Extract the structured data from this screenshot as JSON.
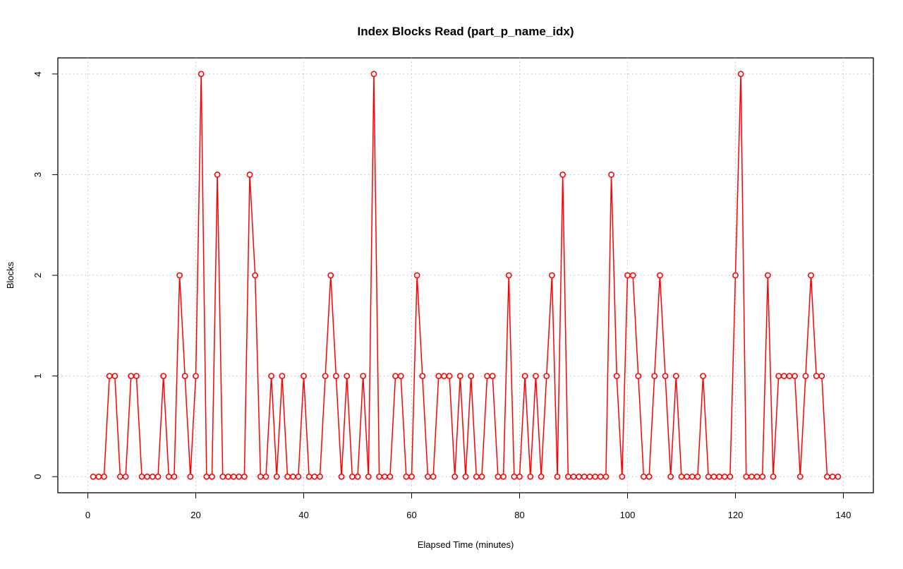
{
  "chart_data": {
    "type": "line",
    "title": "Index Blocks Read (part_p_name_idx)",
    "x_label": "Elapsed Time (minutes)",
    "y_label": "Blocks",
    "x": [
      1,
      2,
      3,
      4,
      5,
      6,
      7,
      8,
      9,
      10,
      11,
      12,
      13,
      14,
      15,
      16,
      17,
      18,
      19,
      20,
      21,
      22,
      23,
      24,
      25,
      26,
      27,
      28,
      29,
      30,
      31,
      32,
      33,
      34,
      35,
      36,
      37,
      38,
      39,
      40,
      41,
      42,
      43,
      44,
      45,
      46,
      47,
      48,
      49,
      50,
      51,
      52,
      53,
      54,
      55,
      56,
      57,
      58,
      59,
      60,
      61,
      62,
      63,
      64,
      65,
      66,
      67,
      68,
      69,
      70,
      71,
      72,
      73,
      74,
      75,
      76,
      77,
      78,
      79,
      80,
      81,
      82,
      83,
      84,
      85,
      86,
      87,
      88,
      89,
      90,
      91,
      92,
      93,
      94,
      95,
      96,
      97,
      98,
      99,
      100,
      101,
      102,
      103,
      104,
      105,
      106,
      107,
      108,
      109,
      110,
      111,
      112,
      113,
      114,
      115,
      116,
      117,
      118,
      119,
      120,
      121,
      122,
      123,
      124,
      125,
      126,
      127,
      128,
      129,
      130,
      131,
      132,
      133,
      134,
      135,
      136,
      137,
      138,
      139
    ],
    "series": [
      {
        "name": "Blocks",
        "color": "#ff0000",
        "values": [
          0,
          0,
          0,
          1,
          1,
          0,
          0,
          1,
          1,
          0,
          0,
          0,
          0,
          1,
          0,
          0,
          2,
          1,
          0,
          1,
          4,
          0,
          0,
          3,
          0,
          0,
          0,
          0,
          0,
          3,
          2,
          0,
          0,
          1,
          0,
          1,
          0,
          0,
          0,
          1,
          0,
          0,
          0,
          1,
          2,
          1,
          0,
          1,
          0,
          0,
          1,
          0,
          4,
          0,
          0,
          0,
          1,
          1,
          0,
          0,
          2,
          1,
          0,
          0,
          1,
          1,
          1,
          0,
          1,
          0,
          1,
          0,
          0,
          1,
          1,
          0,
          0,
          2,
          0,
          0,
          1,
          0,
          1,
          0,
          1,
          2,
          0,
          3,
          0,
          0,
          0,
          0,
          0,
          0,
          0,
          0,
          3,
          1,
          0,
          2,
          2,
          1,
          0,
          0,
          1,
          2,
          1,
          0,
          1,
          0,
          0,
          0,
          0,
          1,
          0,
          0,
          0,
          0,
          0,
          2,
          4,
          0,
          0,
          0,
          0,
          2,
          0,
          1,
          1,
          1,
          1,
          0,
          1,
          2,
          1,
          1,
          0,
          0,
          0
        ]
      }
    ],
    "xlim": [
      -5.56,
      145.56
    ],
    "ylim": [
      -0.16,
      4.16
    ],
    "xticks": [
      0,
      20,
      40,
      60,
      80,
      100,
      120,
      140
    ],
    "yticks": [
      0,
      1,
      2,
      3,
      4
    ],
    "grid": true
  }
}
